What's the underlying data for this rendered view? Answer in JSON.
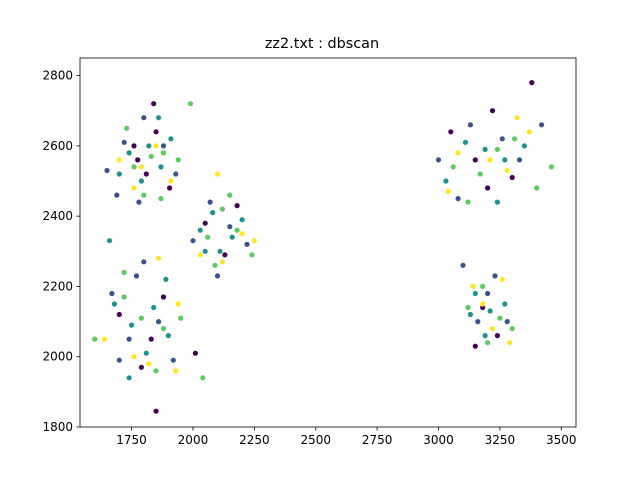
{
  "chart_data": {
    "type": "scatter",
    "title": "zz2.txt : dbscan",
    "xlabel": "",
    "ylabel": "",
    "xlim": [
      1540,
      3560
    ],
    "ylim": [
      1800,
      2850
    ],
    "xticks": [
      1750,
      2000,
      2250,
      2500,
      2750,
      3000,
      3250,
      3500
    ],
    "yticks": [
      1800,
      2000,
      2200,
      2400,
      2600,
      2800
    ],
    "xtick_labels": [
      "1750",
      "2000",
      "2250",
      "2500",
      "2750",
      "3000",
      "3250",
      "3500"
    ],
    "ytick_labels": [
      "1800",
      "2000",
      "2200",
      "2400",
      "2600",
      "2800"
    ],
    "grid": false,
    "legend": "none",
    "colormap": [
      "#440154",
      "#3b528b",
      "#21918c",
      "#5ec962",
      "#fde725"
    ],
    "series": [
      {
        "cluster": 0,
        "color": "#440154",
        "points": [
          [
            1775,
            2560
          ],
          [
            1810,
            2520
          ],
          [
            1850,
            2640
          ],
          [
            1905,
            2480
          ],
          [
            1840,
            2720
          ],
          [
            1760,
            2600
          ],
          [
            2050,
            2380
          ],
          [
            2130,
            2290
          ],
          [
            2180,
            2430
          ],
          [
            1700,
            2120
          ],
          [
            1830,
            2050
          ],
          [
            1790,
            1970
          ],
          [
            1880,
            2170
          ],
          [
            2010,
            2010
          ],
          [
            3050,
            2640
          ],
          [
            3150,
            2560
          ],
          [
            3300,
            2510
          ],
          [
            3380,
            2780
          ],
          [
            3220,
            2700
          ],
          [
            3180,
            2140
          ],
          [
            3240,
            2060
          ],
          [
            3150,
            2030
          ],
          [
            1850,
            1845
          ],
          [
            3200,
            2480
          ]
        ]
      },
      {
        "cluster": 1,
        "color": "#3b528b",
        "points": [
          [
            1650,
            2530
          ],
          [
            1720,
            2610
          ],
          [
            1800,
            2680
          ],
          [
            1880,
            2600
          ],
          [
            1930,
            2520
          ],
          [
            1780,
            2440
          ],
          [
            1690,
            2460
          ],
          [
            2070,
            2440
          ],
          [
            2150,
            2370
          ],
          [
            2220,
            2320
          ],
          [
            2000,
            2330
          ],
          [
            2100,
            2230
          ],
          [
            1670,
            2180
          ],
          [
            1740,
            2050
          ],
          [
            1860,
            2100
          ],
          [
            1920,
            1990
          ],
          [
            1770,
            2230
          ],
          [
            3000,
            2560
          ],
          [
            3080,
            2450
          ],
          [
            3130,
            2660
          ],
          [
            3260,
            2620
          ],
          [
            3330,
            2560
          ],
          [
            3420,
            2660
          ],
          [
            3100,
            2260
          ],
          [
            3200,
            2180
          ],
          [
            3280,
            2100
          ],
          [
            3160,
            2100
          ],
          [
            3230,
            2230
          ],
          [
            1800,
            2270
          ],
          [
            1700,
            1990
          ]
        ]
      },
      {
        "cluster": 2,
        "color": "#21918c",
        "points": [
          [
            1740,
            2580
          ],
          [
            1820,
            2600
          ],
          [
            1870,
            2540
          ],
          [
            1910,
            2620
          ],
          [
            1790,
            2500
          ],
          [
            1700,
            2520
          ],
          [
            1860,
            2680
          ],
          [
            2030,
            2360
          ],
          [
            2080,
            2410
          ],
          [
            2160,
            2340
          ],
          [
            2200,
            2390
          ],
          [
            2110,
            2300
          ],
          [
            2050,
            2300
          ],
          [
            1680,
            2150
          ],
          [
            1750,
            2090
          ],
          [
            1840,
            2140
          ],
          [
            1810,
            2010
          ],
          [
            1900,
            2060
          ],
          [
            1660,
            2330
          ],
          [
            3030,
            2500
          ],
          [
            3110,
            2610
          ],
          [
            3190,
            2590
          ],
          [
            3270,
            2560
          ],
          [
            3350,
            2600
          ],
          [
            3240,
            2440
          ],
          [
            3150,
            2180
          ],
          [
            3210,
            2130
          ],
          [
            3270,
            2150
          ],
          [
            3190,
            2060
          ],
          [
            3130,
            2120
          ],
          [
            1890,
            2220
          ],
          [
            1740,
            1940
          ]
        ]
      },
      {
        "cluster": 3,
        "color": "#5ec962",
        "points": [
          [
            1760,
            2540
          ],
          [
            1830,
            2570
          ],
          [
            1880,
            2580
          ],
          [
            1940,
            2560
          ],
          [
            1800,
            2460
          ],
          [
            1730,
            2650
          ],
          [
            1870,
            2450
          ],
          [
            2060,
            2340
          ],
          [
            2120,
            2420
          ],
          [
            2180,
            2360
          ],
          [
            2240,
            2290
          ],
          [
            2090,
            2260
          ],
          [
            2150,
            2460
          ],
          [
            1720,
            2170
          ],
          [
            1790,
            2110
          ],
          [
            1880,
            2080
          ],
          [
            1850,
            1960
          ],
          [
            1950,
            2110
          ],
          [
            1600,
            2050
          ],
          [
            2040,
            1940
          ],
          [
            3060,
            2540
          ],
          [
            3170,
            2520
          ],
          [
            3240,
            2590
          ],
          [
            3310,
            2620
          ],
          [
            3400,
            2480
          ],
          [
            3460,
            2540
          ],
          [
            3180,
            2200
          ],
          [
            3250,
            2110
          ],
          [
            3200,
            2040
          ],
          [
            3120,
            2140
          ],
          [
            3300,
            2080
          ],
          [
            1720,
            2240
          ],
          [
            3120,
            2440
          ],
          [
            1990,
            2720
          ]
        ]
      },
      {
        "cluster": 4,
        "color": "#fde725",
        "points": [
          [
            1700,
            2560
          ],
          [
            1850,
            2600
          ],
          [
            1790,
            2540
          ],
          [
            1910,
            2500
          ],
          [
            1760,
            2480
          ],
          [
            2100,
            2520
          ],
          [
            2200,
            2350
          ],
          [
            2030,
            2290
          ],
          [
            2120,
            2270
          ],
          [
            2250,
            2330
          ],
          [
            1760,
            2000
          ],
          [
            1940,
            2150
          ],
          [
            1860,
            2280
          ],
          [
            1820,
            1980
          ],
          [
            1930,
            1960
          ],
          [
            1640,
            2050
          ],
          [
            3080,
            2580
          ],
          [
            3210,
            2560
          ],
          [
            3280,
            2530
          ],
          [
            3320,
            2680
          ],
          [
            3370,
            2640
          ],
          [
            3140,
            2200
          ],
          [
            3220,
            2080
          ],
          [
            3180,
            2150
          ],
          [
            3260,
            2220
          ],
          [
            3290,
            2040
          ],
          [
            3040,
            2470
          ]
        ]
      }
    ]
  }
}
